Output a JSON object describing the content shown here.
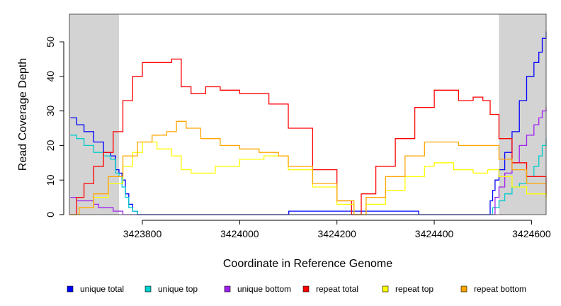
{
  "chart_data": {
    "type": "line",
    "title": "",
    "xlabel": "Coordinate in Reference Genome",
    "ylabel": "Read Coverage Depth",
    "xlim": [
      3423650,
      3424630
    ],
    "ylim": [
      0,
      58
    ],
    "x_ticks": [
      3423800,
      3424000,
      3424200,
      3424400,
      3424600
    ],
    "y_ticks": [
      0,
      10,
      20,
      30,
      40,
      50
    ],
    "grid": false,
    "legend_position": "bottom",
    "shaded_regions": [
      [
        3423650,
        3423752
      ],
      [
        3424533,
        3424630
      ]
    ],
    "shade_color": "#d3d3d3",
    "series": [
      {
        "name": "unique total",
        "color": "#0000ff",
        "x": [
          3423652,
          3423665,
          3423680,
          3423700,
          3423720,
          3423735,
          3423745,
          3423752,
          3423758,
          3423765,
          3423772,
          3423780,
          3423790,
          3423795,
          3423800,
          3424100,
          3424101,
          3424367,
          3424368,
          3424510,
          3424515,
          3424520,
          3424525,
          3424533,
          3424545,
          3424560,
          3424575,
          3424590,
          3424605,
          3424615,
          3424622,
          3424630
        ],
        "y": [
          28,
          26,
          24,
          21,
          18,
          17,
          13,
          12,
          10,
          6,
          3,
          1,
          0,
          0,
          0,
          0,
          1,
          1,
          0,
          0,
          4,
          7,
          10,
          13,
          18,
          24,
          33,
          40,
          44,
          47,
          51,
          53
        ]
      },
      {
        "name": "unique top",
        "color": "#00cdcd",
        "x": [
          3423652,
          3423665,
          3423680,
          3423700,
          3423720,
          3423735,
          3423745,
          3423752,
          3423758,
          3423765,
          3423772,
          3423780,
          3423790,
          3424510,
          3424520,
          3424533,
          3424545,
          3424560,
          3424575,
          3424590,
          3424605,
          3424615,
          3424622,
          3424630
        ],
        "y": [
          23,
          22,
          20,
          18,
          17,
          16,
          12,
          11,
          8,
          5,
          2,
          1,
          0,
          0,
          2,
          4,
          6,
          8,
          9,
          11,
          14,
          17,
          20,
          22
        ]
      },
      {
        "name": "unique bottom",
        "color": "#a020f0",
        "x": [
          3423652,
          3423665,
          3423680,
          3423700,
          3423710,
          3423725,
          3423740,
          3423752,
          3423760,
          3424515,
          3424525,
          3424533,
          3424545,
          3424560,
          3424575,
          3424590,
          3424605,
          3424615,
          3424622,
          3424630
        ],
        "y": [
          5,
          4,
          4,
          3,
          2,
          2,
          1,
          1,
          0,
          0,
          5,
          8,
          12,
          15,
          20,
          23,
          26,
          28,
          30,
          31
        ]
      },
      {
        "name": "repeat total",
        "color": "#ff0000",
        "x": [
          3423650,
          3423665,
          3423680,
          3423700,
          3423720,
          3423740,
          3423760,
          3423780,
          3423800,
          3423830,
          3423860,
          3423880,
          3423900,
          3423930,
          3423960,
          3424000,
          3424030,
          3424060,
          3424100,
          3424150,
          3424200,
          3424230,
          3424250,
          3424280,
          3424320,
          3424360,
          3424400,
          3424420,
          3424450,
          3424480,
          3424500,
          3424515,
          3424533,
          3424560,
          3424590,
          3424630
        ],
        "y": [
          0,
          5,
          9,
          14,
          18,
          24,
          33,
          40,
          44,
          44,
          45,
          37,
          35,
          37,
          36,
          35,
          35,
          32,
          25,
          13,
          4,
          0,
          6,
          14,
          22,
          31,
          36,
          36,
          33,
          34,
          33,
          29,
          22,
          15,
          11,
          6
        ]
      },
      {
        "name": "repeat top",
        "color": "#ffff00",
        "x": [
          3423650,
          3423670,
          3423700,
          3423730,
          3423760,
          3423780,
          3423800,
          3423830,
          3423860,
          3423880,
          3423900,
          3423950,
          3424000,
          3424050,
          3424100,
          3424150,
          3424200,
          3424235,
          3424260,
          3424300,
          3424340,
          3424380,
          3424400,
          3424440,
          3424480,
          3424510,
          3424533,
          3424560,
          3424590,
          3424630
        ],
        "y": [
          0,
          2,
          5,
          9,
          14,
          18,
          21,
          19,
          17,
          13,
          12,
          14,
          16,
          17,
          13,
          8,
          3,
          0,
          3,
          7,
          11,
          14,
          15,
          13,
          12,
          13,
          11,
          8,
          6,
          4
        ]
      },
      {
        "name": "repeat bottom",
        "color": "#ffa500",
        "x": [
          3423650,
          3423670,
          3423700,
          3423730,
          3423760,
          3423790,
          3423820,
          3423850,
          3423870,
          3423890,
          3423920,
          3423960,
          3424000,
          3424040,
          3424080,
          3424100,
          3424150,
          3424200,
          3424235,
          3424260,
          3424300,
          3424340,
          3424380,
          3424420,
          3424450,
          3424480,
          3424510,
          3424533,
          3424560,
          3424590,
          3424630
        ],
        "y": [
          0,
          2,
          6,
          11,
          17,
          21,
          23,
          24,
          27,
          25,
          22,
          20,
          19,
          18,
          17,
          14,
          9,
          4,
          0,
          5,
          11,
          17,
          21,
          21,
          20,
          20,
          20,
          16,
          13,
          9,
          5
        ]
      }
    ]
  }
}
